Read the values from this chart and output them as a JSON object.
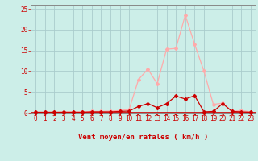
{
  "x": [
    0,
    1,
    2,
    3,
    4,
    5,
    6,
    7,
    8,
    9,
    10,
    11,
    12,
    13,
    14,
    15,
    16,
    17,
    18,
    19,
    20,
    21,
    22,
    23
  ],
  "y_rafales": [
    0.1,
    0.1,
    0.1,
    0.2,
    0.2,
    0.2,
    0.3,
    0.3,
    0.4,
    0.5,
    0.8,
    8.0,
    10.5,
    7.0,
    15.3,
    15.5,
    23.5,
    16.5,
    10.0,
    2.0,
    2.3,
    0.3,
    0.5,
    0.2
  ],
  "y_moyen": [
    0.1,
    0.1,
    0.1,
    0.1,
    0.1,
    0.1,
    0.2,
    0.2,
    0.2,
    0.3,
    0.4,
    1.5,
    2.2,
    1.2,
    2.2,
    4.0,
    3.3,
    4.1,
    0.2,
    0.3,
    2.2,
    0.3,
    0.2,
    0.1
  ],
  "color_rafales": "#ffaaaa",
  "color_moyen": "#cc0000",
  "bg_color": "#cceee8",
  "grid_color": "#aacccc",
  "xlabel": "Vent moyen/en rafales ( km/h )",
  "ylim": [
    0,
    26
  ],
  "xlim": [
    -0.5,
    23.5
  ],
  "yticks": [
    0,
    5,
    10,
    15,
    20,
    25
  ],
  "xticks": [
    0,
    1,
    2,
    3,
    4,
    5,
    6,
    7,
    8,
    9,
    10,
    11,
    12,
    13,
    14,
    15,
    16,
    17,
    18,
    19,
    20,
    21,
    22,
    23
  ],
  "markersize": 2.0,
  "linewidth": 0.9,
  "label_fontsize": 6.5,
  "tick_fontsize": 5.5,
  "arrow_angles": [
    225,
    225,
    225,
    225,
    225,
    225,
    225,
    225,
    225,
    225,
    225,
    135,
    135,
    135,
    45,
    45,
    45,
    225,
    225,
    225,
    225,
    225,
    225,
    225
  ]
}
